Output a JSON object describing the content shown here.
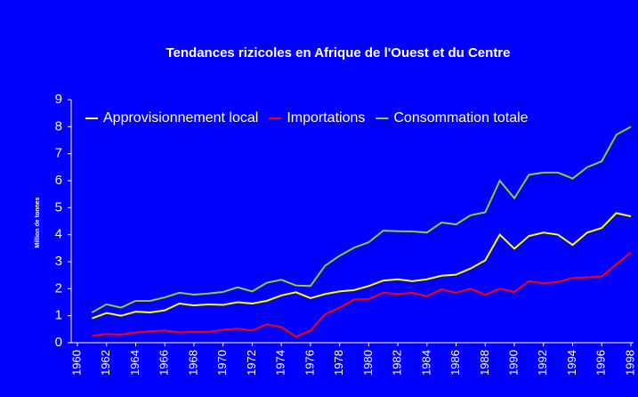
{
  "chart_data": {
    "type": "line",
    "title": "Tendances rizicoles en Afrique de l'Ouest et du Centre",
    "ylabel": "Million de tonnes",
    "x": [
      1961,
      1962,
      1963,
      1964,
      1965,
      1966,
      1967,
      1968,
      1969,
      1970,
      1971,
      1972,
      1973,
      1974,
      1975,
      1976,
      1977,
      1978,
      1979,
      1980,
      1981,
      1982,
      1983,
      1984,
      1985,
      1986,
      1987,
      1988,
      1989,
      1990,
      1991,
      1992,
      1993,
      1994,
      1995,
      1996,
      1997,
      1998
    ],
    "series": [
      {
        "name": "Approvisionnement local",
        "color": "#ffff00",
        "values": [
          0.9,
          1.1,
          1.0,
          1.15,
          1.12,
          1.2,
          1.45,
          1.38,
          1.42,
          1.4,
          1.5,
          1.45,
          1.55,
          1.75,
          1.87,
          1.65,
          1.8,
          1.9,
          1.95,
          2.1,
          2.3,
          2.35,
          2.28,
          2.35,
          2.48,
          2.52,
          2.75,
          3.05,
          4.0,
          3.48,
          3.95,
          4.08,
          4.0,
          3.62,
          4.08,
          4.25,
          4.8,
          4.68
        ]
      },
      {
        "name": "Importations",
        "color": "#ff0000",
        "values": [
          0.25,
          0.32,
          0.3,
          0.38,
          0.42,
          0.45,
          0.38,
          0.4,
          0.4,
          0.48,
          0.52,
          0.45,
          0.68,
          0.58,
          0.22,
          0.45,
          1.05,
          1.3,
          1.6,
          1.62,
          1.85,
          1.8,
          1.85,
          1.72,
          1.98,
          1.85,
          2.0,
          1.78,
          2.0,
          1.88,
          2.28,
          2.2,
          2.25,
          2.4,
          2.42,
          2.45,
          2.9,
          3.35
        ]
      },
      {
        "name": "Consommation totale",
        "color": "#99cc33",
        "values": [
          1.12,
          1.42,
          1.3,
          1.55,
          1.55,
          1.68,
          1.85,
          1.78,
          1.82,
          1.88,
          2.05,
          1.9,
          2.22,
          2.33,
          2.12,
          2.1,
          2.85,
          3.22,
          3.52,
          3.72,
          4.15,
          4.13,
          4.12,
          4.08,
          4.45,
          4.38,
          4.72,
          4.83,
          6.0,
          5.35,
          6.22,
          6.3,
          6.3,
          6.08,
          6.5,
          6.72,
          7.7,
          8.0
        ]
      }
    ],
    "xlim": [
      1960,
      1998
    ],
    "xticks": [
      1960,
      1962,
      1964,
      1966,
      1968,
      1970,
      1972,
      1974,
      1976,
      1978,
      1980,
      1982,
      1984,
      1986,
      1988,
      1990,
      1992,
      1994,
      1996,
      1998
    ],
    "ylim": [
      0,
      9
    ],
    "yticks": [
      0,
      1,
      2,
      3,
      4,
      5,
      6,
      7,
      8,
      9
    ],
    "legend": "top-left"
  }
}
